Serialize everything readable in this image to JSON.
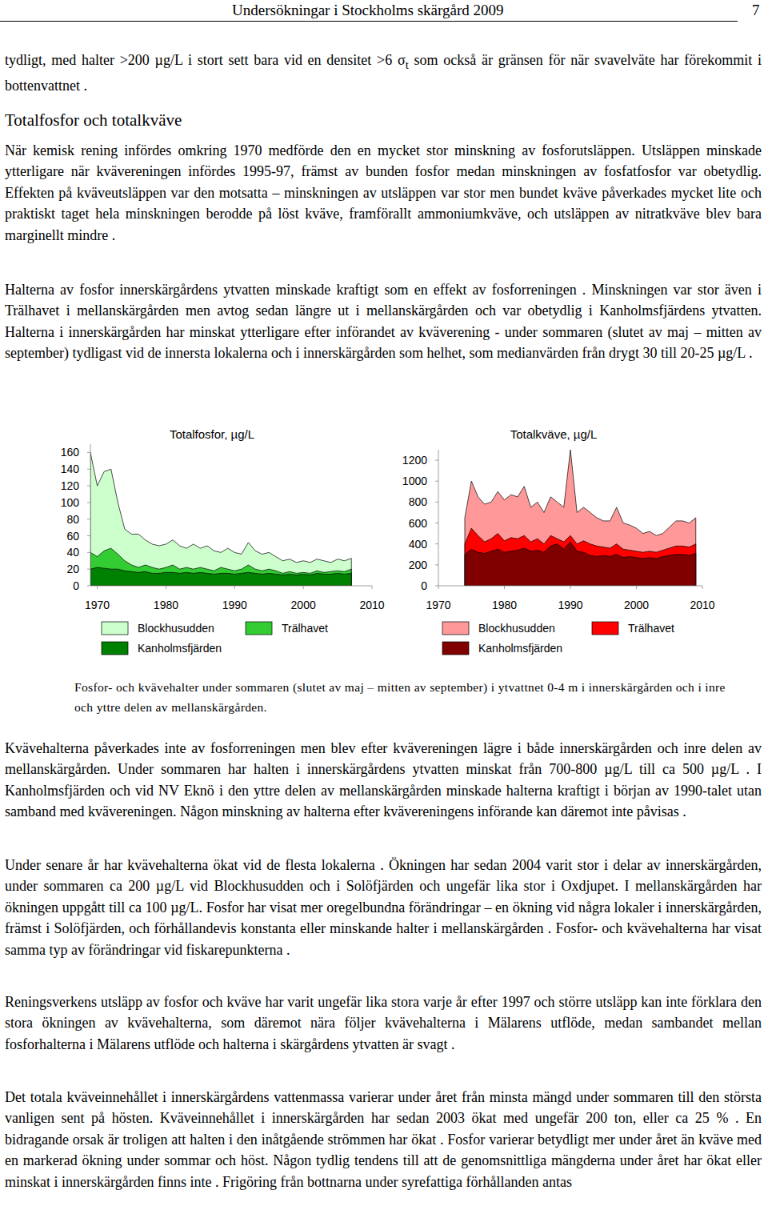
{
  "header": {
    "title": "Undersökningar i Stockholms skärgård 2009",
    "page": "7"
  },
  "intro": {
    "before": "tydligt, med halter >200 µg/L i stort sett bara vid en densitet >6 σ",
    "subscript": "t",
    "after": " som också är gränsen för när svavelväte har förekommit i bottenvattnet ."
  },
  "heading": "Totalfosfor och totalkväve",
  "paragraphs_top": [
    "När kemisk rening infördes omkring 1970 medförde den en mycket stor minskning av fosforutsläppen. Utsläppen minskade ytterligare när kvävereningen infördes 1995-97, främst av bunden fosfor medan minskningen av fosfatfosfor var obetydlig. Effekten på kväveutsläppen var den motsatta – minskningen av utsläppen var stor men bundet kväve påverkades mycket lite och praktiskt taget hela minskningen berodde på löst kväve, framförallt ammoniumkväve, och utsläppen av nitratkväve blev bara marginellt mindre .",
    "Halterna av fosfor innerskärgårdens ytvatten minskade kraftigt som en effekt av fosforreningen . Minskningen var stor även i Trälhavet i mellanskärgården men avtog sedan längre ut i mellanskärgården och var obetydlig i Kanholmsfjärdens ytvatten. Halterna i innerskärgården har minskat ytterligare efter införandet av kväverening - under sommaren (slutet av maj – mitten av september) tydligast vid de innersta lokalerna och i innerskärgården som helhet, som medianvärden från drygt 30 till 20-25 µg/L ."
  ],
  "chart_data": [
    {
      "type": "area",
      "title": "Totalfosfor, µg/L",
      "stacked": false,
      "legend": "bottom",
      "x": [
        1969,
        1970,
        1971,
        1972,
        1973,
        1974,
        1975,
        1976,
        1977,
        1978,
        1979,
        1980,
        1981,
        1982,
        1983,
        1984,
        1985,
        1986,
        1987,
        1988,
        1989,
        1990,
        1991,
        1992,
        1993,
        1994,
        1995,
        1996,
        1997,
        1998,
        1999,
        2000,
        2001,
        2002,
        2003,
        2004,
        2005,
        2006,
        2007
      ],
      "xlim": [
        1969,
        2010
      ],
      "xticks": [
        1970,
        1980,
        1990,
        2000,
        2010
      ],
      "ylim": [
        0,
        170
      ],
      "yticks": [
        0,
        20,
        40,
        60,
        80,
        100,
        120,
        140,
        160
      ],
      "series": [
        {
          "name": "Blockhusudden",
          "color": "#ccffcc",
          "values": [
            160,
            120,
            137,
            140,
            100,
            68,
            62,
            62,
            55,
            50,
            48,
            50,
            55,
            48,
            45,
            50,
            45,
            48,
            42,
            40,
            45,
            40,
            38,
            52,
            42,
            38,
            40,
            35,
            30,
            32,
            28,
            30,
            28,
            32,
            30,
            28,
            32,
            30,
            33
          ]
        },
        {
          "name": "Trälhavet",
          "color": "#33cc33",
          "values": [
            40,
            35,
            42,
            45,
            38,
            30,
            25,
            22,
            25,
            22,
            20,
            22,
            25,
            20,
            22,
            20,
            22,
            20,
            18,
            22,
            20,
            18,
            20,
            25,
            20,
            18,
            20,
            18,
            15,
            17,
            15,
            16,
            15,
            18,
            16,
            17,
            18,
            17,
            20
          ]
        },
        {
          "name": "Kanholmsfjärden",
          "color": "#008000",
          "values": [
            20,
            22,
            21,
            20,
            20,
            18,
            17,
            16,
            17,
            15,
            15,
            16,
            16,
            15,
            16,
            15,
            16,
            15,
            14,
            15,
            15,
            14,
            15,
            16,
            15,
            14,
            15,
            14,
            13,
            14,
            13,
            14,
            13,
            15,
            14,
            14,
            15,
            14,
            15
          ]
        }
      ]
    },
    {
      "type": "area",
      "title": "Totalkväve, µg/L",
      "stacked": false,
      "legend": "bottom",
      "x": [
        1974,
        1975,
        1976,
        1977,
        1978,
        1979,
        1980,
        1981,
        1982,
        1983,
        1984,
        1985,
        1986,
        1987,
        1988,
        1989,
        1990,
        1991,
        1992,
        1993,
        1994,
        1995,
        1996,
        1997,
        1998,
        1999,
        2000,
        2001,
        2002,
        2003,
        2004,
        2005,
        2006,
        2007,
        2008,
        2009
      ],
      "xlim": [
        1970,
        2010
      ],
      "xticks": [
        1970,
        1980,
        1990,
        2000,
        2010
      ],
      "ylim": [
        0,
        1300
      ],
      "yticks": [
        0,
        200,
        400,
        600,
        800,
        1000,
        1200
      ],
      "series": [
        {
          "name": "Blockhusudden",
          "color": "#ff9999",
          "values": [
            650,
            1000,
            850,
            780,
            800,
            900,
            820,
            870,
            850,
            950,
            750,
            800,
            700,
            850,
            800,
            750,
            1300,
            700,
            750,
            700,
            650,
            620,
            620,
            750,
            600,
            580,
            550,
            500,
            520,
            480,
            500,
            560,
            620,
            620,
            600,
            650
          ]
        },
        {
          "name": "Trälhavet",
          "color": "#ff0000",
          "values": [
            400,
            550,
            480,
            420,
            450,
            500,
            430,
            460,
            450,
            480,
            420,
            450,
            400,
            480,
            450,
            420,
            480,
            400,
            430,
            400,
            380,
            370,
            360,
            400,
            350,
            340,
            330,
            320,
            330,
            320,
            340,
            360,
            380,
            380,
            370,
            400
          ]
        },
        {
          "name": "Kanholmsfjärden",
          "color": "#800000",
          "values": [
            300,
            350,
            320,
            310,
            330,
            350,
            320,
            330,
            340,
            360,
            330,
            340,
            320,
            380,
            400,
            350,
            420,
            330,
            320,
            290,
            280,
            290,
            280,
            300,
            270,
            280,
            270,
            260,
            270,
            260,
            280,
            290,
            300,
            300,
            290,
            310
          ]
        }
      ]
    }
  ],
  "caption": "Fosfor- och kvävehalter under sommaren (slutet av maj – mitten av september) i ytvattnet 0-4 m i innerskärgården och i inre och yttre delen av mellanskärgården.",
  "paragraphs_bottom": [
    "Kvävehalterna påverkades inte av fosforreningen men blev efter kvävereningen lägre i både innerskärgården och inre delen av mellanskärgården. Under sommaren har halten i innerskärgårdens ytvatten minskat från 700-800 µg/L till ca 500 µg/L . I Kanholmsfjärden och vid NV Eknö i den yttre delen av mellanskärgården minskade halterna kraftigt i början av 1990-talet utan samband med kvävereningen. Någon minskning av halterna efter kvävereningens införande kan däremot inte påvisas .",
    "Under senare år har kvävehalterna ökat vid de flesta lokalerna . Ökningen har sedan 2004 varit stor i delar av innerskärgården, under sommaren ca 200 µg/L vid Blockhusudden och i Solöfjärden och ungefär lika stor i Oxdjupet. I mellanskärgården har ökningen uppgått till ca 100 µg/L. Fosfor har visat mer oregelbundna förändringar – en ökning vid några lokaler i innerskärgården, främst i Solöfjärden, och förhållandevis konstanta eller minskande halter i mellanskärgården . Fosfor- och kvävehalterna har visat samma typ av förändringar vid fiskarepunkterna .",
    "Reningsverkens utsläpp av fosfor och kväve har varit ungefär lika stora varje år efter 1997 och större utsläpp kan inte förklara den stora ökningen av kvävehalterna, som däremot nära följer kvävehalterna i Mälarens utflöde, medan sambandet mellan fosforhalterna i Mälarens utflöde och halterna i skärgårdens ytvatten är svagt .",
    "Det totala kväveinnehållet i innerskärgårdens vattenmassa varierar under året från minsta mängd under sommaren till den största vanligen sent på hösten. Kväveinnehållet i innerskärgården har sedan 2003 ökat med ungefär 200 ton, eller ca 25 % . En bidragande orsak är troligen att halten i den inåtgående strömmen har ökat . Fosfor varierar betydligt mer under året än kväve med en markerad ökning under sommar och höst. Någon tydlig tendens till att de genomsnittliga mängderna under året har ökat eller minskat i innerskärgården finns inte . Frigöring från bottnarna under syrefattiga förhållanden antas"
  ]
}
